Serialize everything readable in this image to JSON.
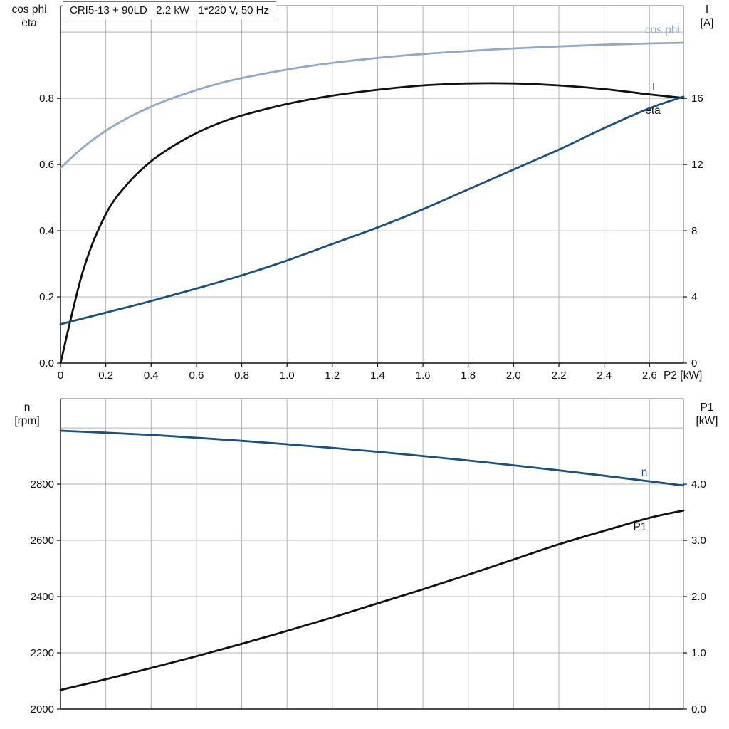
{
  "title_box": {
    "text": "CRI5-13 + 90LD   2.2 kW   1*220 V, 50 Hz"
  },
  "axis_titles": {
    "top_left_line1": "cos phi",
    "top_left_line2": "eta",
    "top_right_line1": "I",
    "top_right_line2": "[A]",
    "bottom_left_line1": "n",
    "bottom_left_line2": "[rpm]",
    "bottom_right_line1": "P1",
    "bottom_right_line2": "[kW]"
  },
  "colors": {
    "black_curve": "#111111",
    "dark_blue_curve": "#1b4f7d",
    "light_blue_curve": "#8fa9c7",
    "grid": "#b5b5b5",
    "frame": "#6e6e6e",
    "text": "#111111"
  },
  "chart_data": [
    {
      "type": "line",
      "title": "CRI5-13 + 90LD   2.2 kW   1*220 V, 50 Hz",
      "xlabel": "P2 [kW]",
      "xlim": [
        0,
        2.75
      ],
      "x_ticks": [
        0,
        0.2,
        0.4,
        0.6,
        0.8,
        1.0,
        1.2,
        1.4,
        1.6,
        1.8,
        2.0,
        2.2,
        2.4,
        2.6
      ],
      "x_tick_labels": [
        "0",
        "0.2",
        "0.4",
        "0.6",
        "0.8",
        "1.0",
        "1.2",
        "1.4",
        "1.6",
        "1.8",
        "2.0",
        "2.2",
        "2.4",
        "2.6"
      ],
      "left_axis": {
        "title": "cos phi / eta",
        "lim": [
          0,
          1.08
        ],
        "ticks": [
          {
            "v": 0.0,
            "label": "0.0"
          },
          {
            "v": 0.2,
            "label": "0.2"
          },
          {
            "v": 0.4,
            "label": "0.4"
          },
          {
            "v": 0.6,
            "label": "0.6"
          },
          {
            "v": 0.8,
            "label": "0.8"
          },
          {
            "v": 1.0,
            "label": ""
          }
        ]
      },
      "right_axis": {
        "title": "I [A]",
        "lim": [
          0,
          21.6
        ],
        "ticks": [
          {
            "v": 0,
            "label": "0"
          },
          {
            "v": 4,
            "label": "4"
          },
          {
            "v": 8,
            "label": "8"
          },
          {
            "v": 12,
            "label": "12"
          },
          {
            "v": 16,
            "label": "16"
          }
        ]
      },
      "series": [
        {
          "name": "cos phi",
          "axis": "left",
          "color_key": "light_blue_curve",
          "x": [
            0,
            0.1,
            0.2,
            0.3,
            0.4,
            0.5,
            0.6,
            0.7,
            0.8,
            1.0,
            1.2,
            1.4,
            1.6,
            1.8,
            2.0,
            2.2,
            2.4,
            2.6,
            2.75
          ],
          "y": [
            0.59,
            0.652,
            0.702,
            0.742,
            0.775,
            0.802,
            0.825,
            0.845,
            0.861,
            0.887,
            0.907,
            0.922,
            0.934,
            0.943,
            0.951,
            0.957,
            0.962,
            0.966,
            0.968
          ]
        },
        {
          "name": "eta",
          "axis": "left",
          "color_key": "black_curve",
          "x": [
            0,
            0.1,
            0.2,
            0.3,
            0.4,
            0.5,
            0.6,
            0.7,
            0.8,
            1.0,
            1.2,
            1.4,
            1.6,
            1.8,
            2.0,
            2.2,
            2.4,
            2.6,
            2.75
          ],
          "y": [
            0,
            0.28,
            0.45,
            0.545,
            0.61,
            0.657,
            0.695,
            0.725,
            0.748,
            0.783,
            0.808,
            0.826,
            0.839,
            0.845,
            0.845,
            0.839,
            0.828,
            0.812,
            0.801
          ]
        },
        {
          "name": "I",
          "axis": "right",
          "color_key": "dark_blue_curve",
          "x": [
            0,
            0.2,
            0.4,
            0.6,
            0.8,
            1.0,
            1.2,
            1.4,
            1.6,
            1.8,
            2.0,
            2.2,
            2.4,
            2.6,
            2.75
          ],
          "y": [
            2.35,
            3.05,
            3.75,
            4.5,
            5.3,
            6.2,
            7.2,
            8.2,
            9.3,
            10.5,
            11.7,
            12.9,
            14.2,
            15.4,
            16.1
          ]
        }
      ]
    },
    {
      "type": "line",
      "title": "",
      "xlabel": "",
      "xlim": [
        0,
        2.75
      ],
      "x_ticks": [
        0,
        0.2,
        0.4,
        0.6,
        0.8,
        1.0,
        1.2,
        1.4,
        1.6,
        1.8,
        2.0,
        2.2,
        2.4,
        2.6
      ],
      "x_tick_labels": null,
      "left_axis": {
        "title": "n [rpm]",
        "lim": [
          2000,
          3104
        ],
        "ticks": [
          {
            "v": 2000,
            "label": "2000"
          },
          {
            "v": 2200,
            "label": "2200"
          },
          {
            "v": 2400,
            "label": "2400"
          },
          {
            "v": 2600,
            "label": "2600"
          },
          {
            "v": 2800,
            "label": "2800"
          },
          {
            "v": 3000,
            "label": ""
          }
        ]
      },
      "right_axis": {
        "title": "P1 [kW]",
        "lim": [
          0,
          5.52
        ],
        "ticks": [
          {
            "v": 0,
            "label": "0.0"
          },
          {
            "v": 1,
            "label": "1.0"
          },
          {
            "v": 2,
            "label": "2.0"
          },
          {
            "v": 3,
            "label": "3.0"
          },
          {
            "v": 4,
            "label": "4.0"
          }
        ]
      },
      "series": [
        {
          "name": "n",
          "axis": "left",
          "color_key": "dark_blue_curve",
          "x": [
            0,
            0.2,
            0.4,
            0.6,
            0.8,
            1.0,
            1.2,
            1.4,
            1.6,
            1.8,
            2.0,
            2.2,
            2.4,
            2.6,
            2.75
          ],
          "y": [
            2990,
            2983,
            2975,
            2965,
            2954,
            2942,
            2929,
            2915,
            2900,
            2884,
            2867,
            2849,
            2830,
            2810,
            2795
          ]
        },
        {
          "name": "P1",
          "axis": "right",
          "color_key": "black_curve",
          "x": [
            0,
            0.2,
            0.4,
            0.6,
            0.8,
            1.0,
            1.2,
            1.4,
            1.6,
            1.8,
            2.0,
            2.2,
            2.4,
            2.6,
            2.75
          ],
          "y": [
            0.34,
            0.53,
            0.73,
            0.94,
            1.16,
            1.39,
            1.63,
            1.88,
            2.13,
            2.39,
            2.66,
            2.93,
            3.17,
            3.4,
            3.53
          ]
        }
      ]
    }
  ]
}
